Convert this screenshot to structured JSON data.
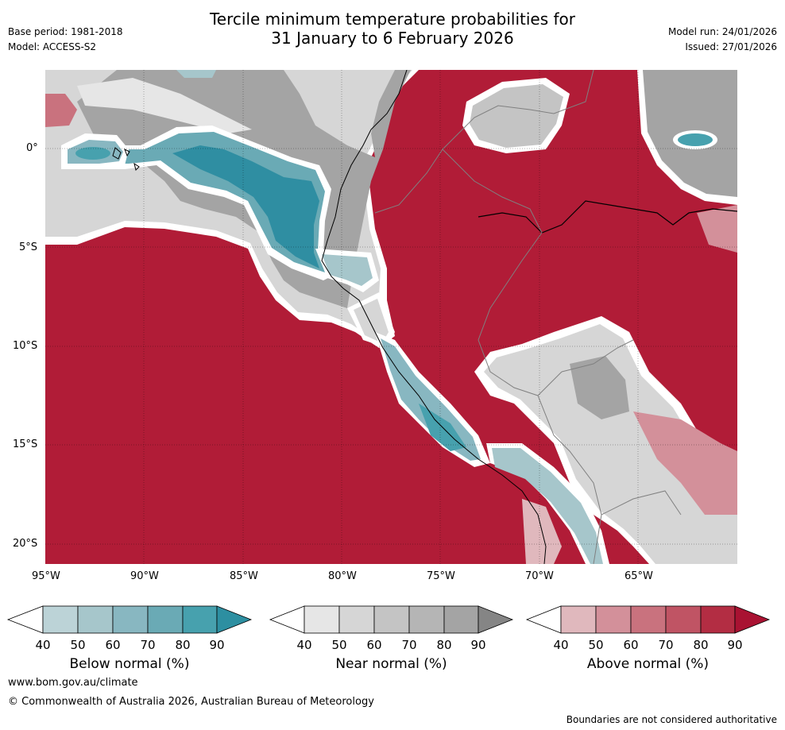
{
  "header": {
    "title_line1": "Tercile minimum temperature probabilities for",
    "title_line2": "31 January to 6 February 2026",
    "base_period": "Base period: 1981-2018",
    "model": "Model: ACCESS-S2",
    "model_run": "Model run: 24/01/2026",
    "issued": "Issued: 27/01/2026"
  },
  "map": {
    "lat_labels": [
      "0°",
      "5°S",
      "10°S",
      "15°S",
      "20°S"
    ],
    "lon_labels": [
      "95°W",
      "90°W",
      "85°W",
      "80°W",
      "75°W",
      "70°W",
      "65°W"
    ],
    "colors": {
      "above_dominant": "#b11c37",
      "below_dominant": "#2f8ea2",
      "near_dominant": "#a4a4a4",
      "coastline": "#000000",
      "border": "#808080"
    }
  },
  "colorbars": {
    "below": {
      "label": "Below normal (%)",
      "ticks": [
        "40",
        "50",
        "60",
        "70",
        "80",
        "90"
      ],
      "colors": [
        "#ffffff",
        "#bcd3d7",
        "#a6c6cb",
        "#88b7c1",
        "#6aaab5",
        "#47a1ae",
        "#2d8fa1"
      ]
    },
    "near": {
      "label": "Near normal (%)",
      "ticks": [
        "40",
        "50",
        "60",
        "70",
        "80",
        "90"
      ],
      "colors": [
        "#ffffff",
        "#e6e6e6",
        "#d6d6d6",
        "#c4c4c4",
        "#b5b5b5",
        "#a4a4a4",
        "#858585"
      ]
    },
    "above": {
      "label": "Above normal (%)",
      "ticks": [
        "40",
        "50",
        "60",
        "70",
        "80",
        "90"
      ],
      "colors": [
        "#ffffff",
        "#e0b8bd",
        "#d3909a",
        "#c9727e",
        "#c05464",
        "#b32d43",
        "#a91232"
      ]
    }
  },
  "footer": {
    "url": "www.bom.gov.au/climate",
    "copyright": "© Commonwealth of Australia 2026, Australian Bureau of Meteorology",
    "disclaimer": "Boundaries are not considered authoritative"
  }
}
